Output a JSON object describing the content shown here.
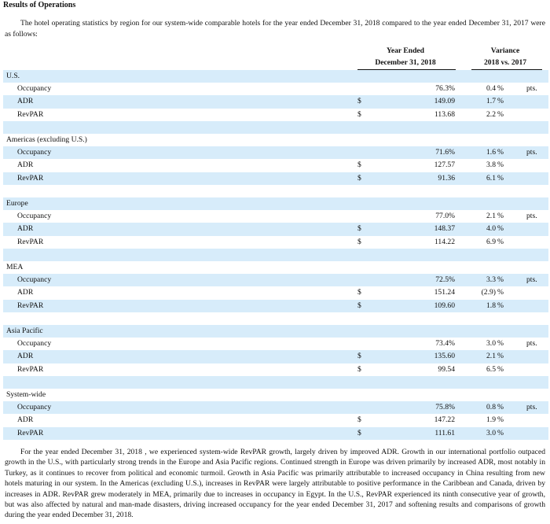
{
  "header": {
    "title": "Results of Operations",
    "intro": "The hotel operating statistics by region for our system-wide comparable hotels for the year ended December 31, 2018 compared to the year ended December 31, 2017 were as follows:"
  },
  "table": {
    "columns": [
      {
        "line1": "Year Ended",
        "line2": "December 31, 2018"
      },
      {
        "line1": "Variance",
        "line2": "2018 vs. 2017"
      }
    ],
    "sections": [
      {
        "name": "U.S.",
        "rows": [
          {
            "label": "Occupancy",
            "value": "76.3%",
            "variance": "0.4",
            "variance_unit": "%",
            "note": "pts."
          },
          {
            "label": "ADR",
            "currency": "$",
            "value": "149.09",
            "variance": "1.7",
            "variance_unit": "%"
          },
          {
            "label": "RevPAR",
            "currency": "$",
            "value": "113.68",
            "variance": "2.2",
            "variance_unit": "%"
          }
        ]
      },
      {
        "name": "Americas (excluding U.S.)",
        "rows": [
          {
            "label": "Occupancy",
            "value": "71.6%",
            "variance": "1.6",
            "variance_unit": "%",
            "note": "pts."
          },
          {
            "label": "ADR",
            "currency": "$",
            "value": "127.57",
            "variance": "3.8",
            "variance_unit": "%"
          },
          {
            "label": "RevPAR",
            "currency": "$",
            "value": "91.36",
            "variance": "6.1",
            "variance_unit": "%"
          }
        ]
      },
      {
        "name": "Europe",
        "rows": [
          {
            "label": "Occupancy",
            "value": "77.0%",
            "variance": "2.1",
            "variance_unit": "%",
            "note": "pts."
          },
          {
            "label": "ADR",
            "currency": "$",
            "value": "148.37",
            "variance": "4.0",
            "variance_unit": "%"
          },
          {
            "label": "RevPAR",
            "currency": "$",
            "value": "114.22",
            "variance": "6.9",
            "variance_unit": "%"
          }
        ]
      },
      {
        "name": "MEA",
        "rows": [
          {
            "label": "Occupancy",
            "value": "72.5%",
            "variance": "3.3",
            "variance_unit": "%",
            "note": "pts."
          },
          {
            "label": "ADR",
            "currency": "$",
            "value": "151.24",
            "variance": "(2.9)",
            "variance_unit": "%"
          },
          {
            "label": "RevPAR",
            "currency": "$",
            "value": "109.60",
            "variance": "1.8",
            "variance_unit": "%"
          }
        ]
      },
      {
        "name": "Asia Pacific",
        "rows": [
          {
            "label": "Occupancy",
            "value": "73.4%",
            "variance": "3.0",
            "variance_unit": "%",
            "note": "pts."
          },
          {
            "label": "ADR",
            "currency": "$",
            "value": "135.60",
            "variance": "2.1",
            "variance_unit": "%"
          },
          {
            "label": "RevPAR",
            "currency": "$",
            "value": "99.54",
            "variance": "6.5",
            "variance_unit": "%"
          }
        ]
      },
      {
        "name": "System-wide",
        "rows": [
          {
            "label": "Occupancy",
            "value": "75.8%",
            "variance": "0.8",
            "variance_unit": "%",
            "note": "pts."
          },
          {
            "label": "ADR",
            "currency": "$",
            "value": "147.22",
            "variance": "1.9",
            "variance_unit": "%"
          },
          {
            "label": "RevPAR",
            "currency": "$",
            "value": "111.61",
            "variance": "3.0",
            "variance_unit": "%"
          }
        ]
      }
    ]
  },
  "closing": "For the year ended December 31, 2018 , we experienced system-wide RevPAR growth, largely driven by improved ADR. Growth in our international portfolio outpaced growth in the U.S., with particularly strong trends in the Europe and Asia Pacific regions. Continued strength in Europe was driven primarily by increased ADR, most notably in Turkey, as it continues to recover from political and economic turmoil. Growth in Asia Pacific was primarily attributable to increased occupancy in China resulting from new hotels maturing in our system. In the Americas (excluding U.S.), increases in RevPAR were largely attributable to positive performance in the Caribbean and Canada, driven by increases in ADR. RevPAR grew moderately in MEA, primarily due to increases in occupancy in Egypt. In the U.S., RevPAR experienced its ninth consecutive year of growth, but was also affected by natural and man-made disasters, driving increased occupancy for the year ended December 31, 2017 and softening results and comparisons of growth during the year ended December 31, 2018."
}
